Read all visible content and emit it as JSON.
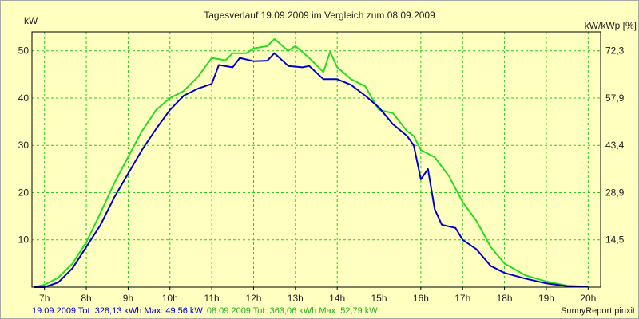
{
  "chart_data": {
    "type": "line",
    "title": "Tagesverlauf 19.09.2009 im Vergleich zum 08.09.2009",
    "ylabel_left": "kW",
    "ylabel_right": "kW/kWp [%]",
    "xlim": [
      6.7,
      20.3
    ],
    "ylim": [
      0,
      54
    ],
    "x_ticks": [
      7,
      8,
      9,
      10,
      11,
      12,
      13,
      14,
      15,
      16,
      17,
      18,
      19,
      20
    ],
    "x_tick_labels": [
      "7h",
      "8h",
      "9h",
      "10h",
      "11h",
      "12h",
      "13h",
      "14h",
      "15h",
      "16h",
      "17h",
      "18h",
      "19h",
      "20h"
    ],
    "y_left_ticks": [
      10,
      20,
      30,
      40,
      50
    ],
    "y_left_tick_labels": [
      "10",
      "20",
      "30",
      "40",
      "50"
    ],
    "y_right_ticks": [
      10,
      20,
      30,
      40,
      50
    ],
    "y_right_tick_labels": [
      "14,5",
      "28,9",
      "43,4",
      "57,9",
      "72,3"
    ],
    "grid": true,
    "series": [
      {
        "name": "19.09.2009",
        "color": "#0000cc",
        "points": [
          [
            6.75,
            0
          ],
          [
            7.0,
            0
          ],
          [
            7.33,
            1
          ],
          [
            7.67,
            4
          ],
          [
            8.0,
            8.5
          ],
          [
            8.33,
            13
          ],
          [
            8.67,
            19
          ],
          [
            9.0,
            24
          ],
          [
            9.33,
            29
          ],
          [
            9.67,
            33.5
          ],
          [
            10.0,
            37.5
          ],
          [
            10.33,
            40.5
          ],
          [
            10.67,
            42
          ],
          [
            11.0,
            43
          ],
          [
            11.17,
            47
          ],
          [
            11.5,
            46.5
          ],
          [
            11.67,
            48.5
          ],
          [
            12.0,
            47.8
          ],
          [
            12.33,
            47.9
          ],
          [
            12.5,
            49.5
          ],
          [
            12.83,
            46.8
          ],
          [
            13.17,
            46.5
          ],
          [
            13.33,
            46.8
          ],
          [
            13.67,
            44
          ],
          [
            14.0,
            44
          ],
          [
            14.33,
            42.8
          ],
          [
            14.67,
            40.5
          ],
          [
            15.0,
            38
          ],
          [
            15.33,
            34.5
          ],
          [
            15.67,
            32
          ],
          [
            15.83,
            30
          ],
          [
            16.0,
            22.8
          ],
          [
            16.17,
            25
          ],
          [
            16.33,
            16.5
          ],
          [
            16.5,
            13.2
          ],
          [
            16.83,
            12.5
          ],
          [
            17.0,
            10
          ],
          [
            17.33,
            8
          ],
          [
            17.67,
            4.5
          ],
          [
            18.0,
            3
          ],
          [
            18.5,
            1.8
          ],
          [
            19.0,
            0.8
          ],
          [
            19.5,
            0.2
          ],
          [
            20.0,
            0.1
          ]
        ]
      },
      {
        "name": "08.09.2009",
        "color": "#22dd22",
        "points": [
          [
            6.75,
            0
          ],
          [
            7.0,
            0.5
          ],
          [
            7.33,
            2
          ],
          [
            7.67,
            5
          ],
          [
            8.0,
            9.5
          ],
          [
            8.33,
            15.5
          ],
          [
            8.67,
            22
          ],
          [
            9.0,
            27.5
          ],
          [
            9.33,
            33
          ],
          [
            9.67,
            37.5
          ],
          [
            10.0,
            40
          ],
          [
            10.33,
            41.5
          ],
          [
            10.67,
            44.5
          ],
          [
            11.0,
            48.5
          ],
          [
            11.33,
            48
          ],
          [
            11.5,
            49.5
          ],
          [
            11.83,
            49.5
          ],
          [
            12.0,
            50.5
          ],
          [
            12.33,
            51
          ],
          [
            12.5,
            52.5
          ],
          [
            12.83,
            50
          ],
          [
            13.0,
            51
          ],
          [
            13.33,
            48.5
          ],
          [
            13.67,
            45.5
          ],
          [
            13.83,
            49.8
          ],
          [
            14.0,
            46.5
          ],
          [
            14.33,
            44
          ],
          [
            14.67,
            42.5
          ],
          [
            14.83,
            40
          ],
          [
            15.0,
            37.5
          ],
          [
            15.33,
            36.8
          ],
          [
            15.67,
            33
          ],
          [
            15.83,
            32
          ],
          [
            16.0,
            29
          ],
          [
            16.33,
            27.5
          ],
          [
            16.67,
            23.5
          ],
          [
            17.0,
            18
          ],
          [
            17.33,
            14
          ],
          [
            17.67,
            8.5
          ],
          [
            18.0,
            5
          ],
          [
            18.5,
            2.5
          ],
          [
            19.0,
            1.2
          ],
          [
            19.5,
            0.3
          ],
          [
            20.0,
            0.1
          ]
        ]
      }
    ]
  },
  "footer": {
    "series1_label": "19.09.2009 Tot: 328,13 kWh Max: 49,56 kW",
    "series2_label": "08.09.2009 Tot: 363,06 kWh Max: 52,79 kW",
    "credit": "SunnyReport pinxit"
  }
}
